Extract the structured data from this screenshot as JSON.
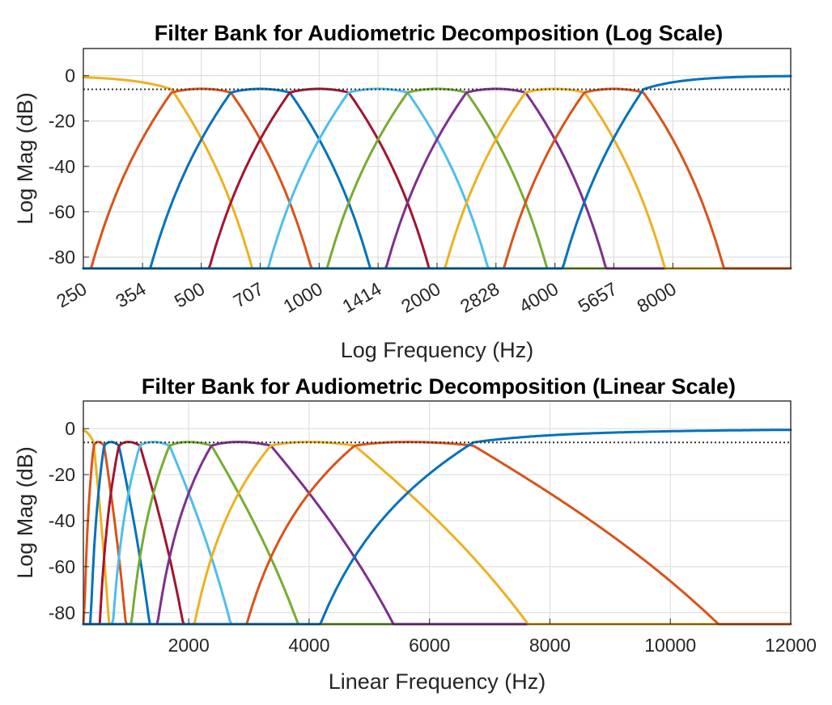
{
  "chart_data": [
    {
      "type": "line",
      "title": "Filter Bank for Audiometric Decomposition (Log Scale)",
      "xlabel": "Log Frequency (Hz)",
      "ylabel": "Log Mag (dB)",
      "xscale": "log",
      "xlim": [
        250,
        16000
      ],
      "ylim": [
        -85,
        12
      ],
      "xticks": [
        250,
        354,
        500,
        707,
        1000,
        1414,
        2000,
        2828,
        4000,
        5657,
        8000
      ],
      "xtick_labels": [
        "250",
        "354",
        "500",
        "707",
        "1000",
        "1414",
        "2000",
        "2828",
        "4000",
        "5657",
        "8000"
      ],
      "xtick_rotation": 30,
      "yticks": [
        0,
        -20,
        -40,
        -60,
        -80
      ],
      "ytick_labels": [
        "0",
        "-20",
        "-40",
        "-60",
        "-80"
      ],
      "grid": true,
      "reference_line": -6,
      "series": [
        {
          "color": "#EDB120",
          "band": [
            0,
            420
          ],
          "floor": -85
        },
        {
          "color": "#D95319",
          "band": [
            420,
            595
          ],
          "floor": -85
        },
        {
          "color": "#0072BD",
          "band": [
            595,
            841
          ],
          "floor": -85
        },
        {
          "color": "#A2142F",
          "band": [
            841,
            1189
          ],
          "floor": -85
        },
        {
          "color": "#4DBEEE",
          "band": [
            1189,
            1682
          ],
          "floor": -85
        },
        {
          "color": "#77AC30",
          "band": [
            1682,
            2378
          ],
          "floor": -85
        },
        {
          "color": "#7E2F8E",
          "band": [
            2378,
            3364
          ],
          "floor": -85
        },
        {
          "color": "#EDB120",
          "band": [
            3364,
            4757
          ],
          "floor": -85
        },
        {
          "color": "#D95319",
          "band": [
            4757,
            6727
          ],
          "floor": -85
        },
        {
          "color": "#0072BD",
          "band": [
            6727,
            24000
          ],
          "floor": -85
        }
      ]
    },
    {
      "type": "line",
      "title": "Filter Bank for Audiometric Decomposition (Linear Scale)",
      "xlabel": "Linear Frequency (Hz)",
      "ylabel": "Log Mag (dB)",
      "xscale": "linear",
      "xlim": [
        250,
        12000
      ],
      "ylim": [
        -85,
        12
      ],
      "xticks": [
        2000,
        4000,
        6000,
        8000,
        10000,
        12000
      ],
      "xtick_labels": [
        "2000",
        "4000",
        "6000",
        "8000",
        "10000",
        "12000"
      ],
      "yticks": [
        0,
        -20,
        -40,
        -60,
        -80
      ],
      "ytick_labels": [
        "0",
        "-20",
        "-40",
        "-60",
        "-80"
      ],
      "grid": true,
      "reference_line": -6,
      "series": [
        {
          "color": "#EDB120",
          "band": [
            0,
            420
          ],
          "floor": -85
        },
        {
          "color": "#D95319",
          "band": [
            420,
            595
          ],
          "floor": -85
        },
        {
          "color": "#0072BD",
          "band": [
            595,
            841
          ],
          "floor": -85
        },
        {
          "color": "#A2142F",
          "band": [
            841,
            1189
          ],
          "floor": -85
        },
        {
          "color": "#4DBEEE",
          "band": [
            1189,
            1682
          ],
          "floor": -85
        },
        {
          "color": "#77AC30",
          "band": [
            1682,
            2378
          ],
          "floor": -85
        },
        {
          "color": "#7E2F8E",
          "band": [
            2378,
            3364
          ],
          "floor": -85
        },
        {
          "color": "#EDB120",
          "band": [
            3364,
            4757
          ],
          "floor": -85
        },
        {
          "color": "#D95319",
          "band": [
            4757,
            6727
          ],
          "floor": -85
        },
        {
          "color": "#0072BD",
          "band": [
            6727,
            24000
          ],
          "floor": -85
        }
      ]
    }
  ]
}
